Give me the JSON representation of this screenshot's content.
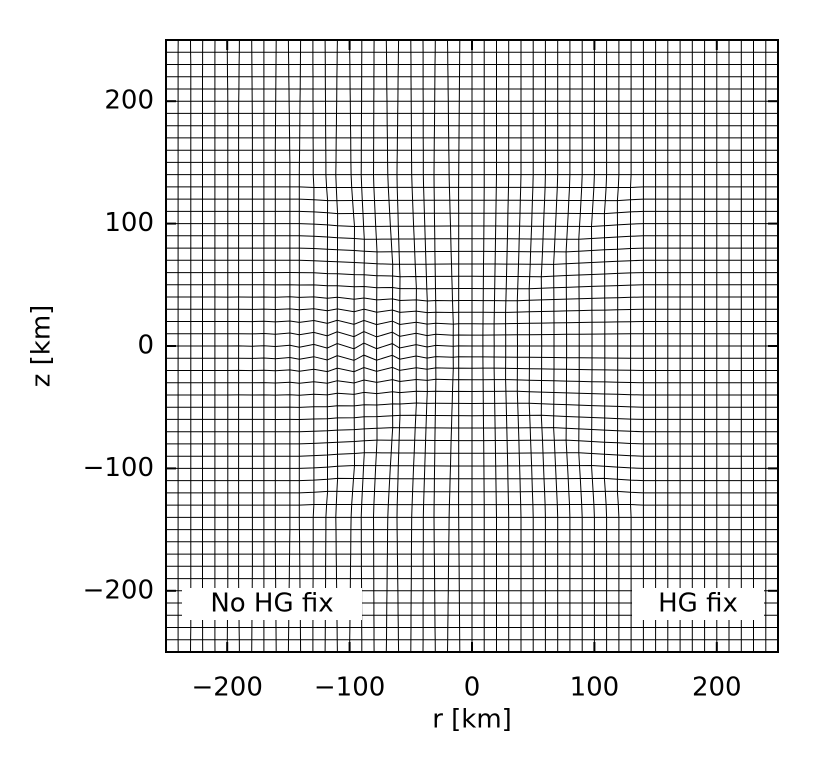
{
  "chart_data": {
    "type": "mesh",
    "xlabel": "r [km]",
    "ylabel": "z [km]",
    "xlim": [
      -250,
      250
    ],
    "ylim": [
      -250,
      250
    ],
    "xticks": [
      {
        "value": -200,
        "label": "−200"
      },
      {
        "value": -100,
        "label": "−100"
      },
      0,
      100,
      200
    ],
    "yticks": [
      {
        "value": -200,
        "label": "−200"
      },
      {
        "value": -100,
        "label": "−100"
      },
      0,
      100,
      200
    ],
    "annotations": [
      "No HG fix",
      "HG fix"
    ]
  }
}
